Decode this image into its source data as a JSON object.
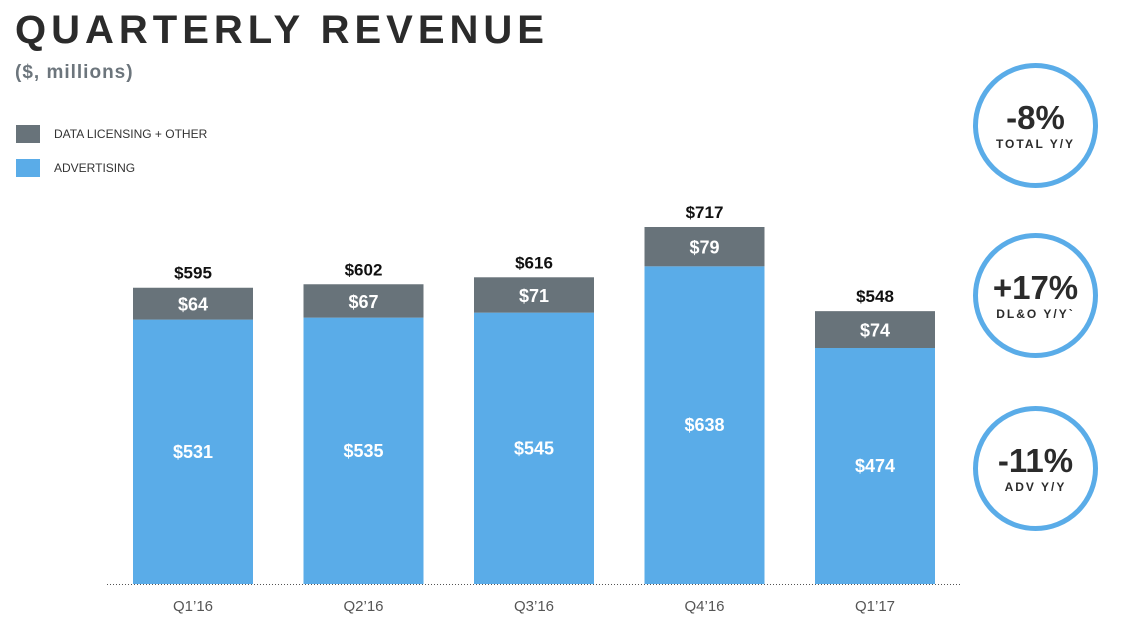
{
  "title": "QUARTERLY REVENUE",
  "subtitle": "($, millions)",
  "legend": [
    {
      "label": "DATA LICENSING + OTHER",
      "color": "#68737a"
    },
    {
      "label": "ADVERTISING",
      "color": "#5aace8"
    }
  ],
  "kpis": [
    {
      "value": "-8%",
      "label": "TOTAL Y/Y"
    },
    {
      "value": "+17%",
      "label": "DL&O Y/Y`"
    },
    {
      "value": "-11%",
      "label": "ADV Y/Y"
    }
  ],
  "chart_data": {
    "type": "bar",
    "stacked": true,
    "categories": [
      "Q1’16",
      "Q2’16",
      "Q3’16",
      "Q4’16",
      "Q1’17"
    ],
    "series": [
      {
        "name": "ADVERTISING",
        "color": "#5aace8",
        "values": [
          531,
          535,
          545,
          638,
          474
        ],
        "labels": [
          "$531",
          "$535",
          "$545",
          "$638",
          "$474"
        ]
      },
      {
        "name": "DATA LICENSING + OTHER",
        "color": "#68737a",
        "values": [
          64,
          67,
          71,
          79,
          74
        ],
        "labels": [
          "$64",
          "$67",
          "$71",
          "$79",
          "$74"
        ]
      }
    ],
    "totals": [
      595,
      602,
      616,
      717,
      548
    ],
    "total_labels": [
      "$595",
      "$602",
      "$616",
      "$717",
      "$548"
    ],
    "ylim": [
      0,
      717
    ],
    "grid": false,
    "legend_position": "top-left"
  }
}
